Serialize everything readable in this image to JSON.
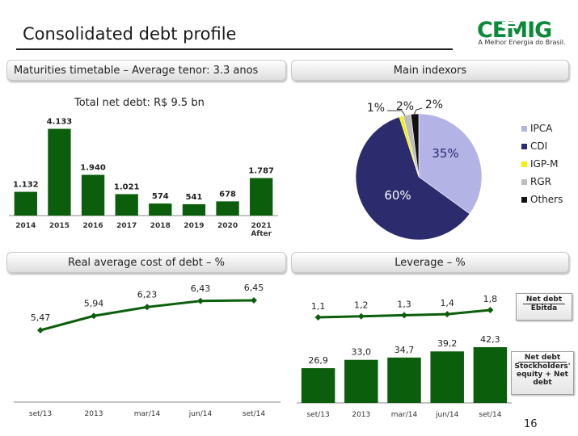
{
  "header": {
    "title": "Consolidated debt profile",
    "logo_text": "CEMIG",
    "logo_tagline": "A Melhor Energia do Brasil."
  },
  "panels": {
    "maturities": {
      "label": "Maturities timetable – Average tenor: 3.3 anos",
      "subtitle": "Total net debt: R$ 9.5 bn"
    },
    "indexors": {
      "label": "Main indexors"
    },
    "cost": {
      "label": "Real average cost of debt – %"
    },
    "leverage": {
      "label": "Leverage – %"
    }
  },
  "ratio_boxes": {
    "ebitda": {
      "numerator": "Net debt",
      "denominator": "Ebitda"
    },
    "equity": {
      "numerator": "Net debt",
      "denominator": "Stockholders' equity + Net debt"
    }
  },
  "page_number": "16",
  "colors": {
    "green": "#0b5e0b",
    "navy": "#2b2b6e",
    "lavender": "#b3b3e6",
    "yellow": "#f2f200",
    "gray": "#bdbdbd",
    "black": "#111111"
  },
  "chart_data": [
    {
      "type": "bar",
      "title": "Total net debt: R$ 9.5 bn",
      "categories": [
        "2014",
        "2015",
        "2016",
        "2017",
        "2018",
        "2019",
        "2020",
        "2021|After"
      ],
      "values": [
        1132,
        4133,
        1940,
        1021,
        574,
        541,
        678,
        1787
      ],
      "value_labels": [
        "1.132",
        "4.133",
        "1.940",
        "1.021",
        "574",
        "541",
        "678",
        "1.787"
      ],
      "ylim": [
        0,
        4500
      ]
    },
    {
      "type": "pie",
      "title": "Main indexors",
      "labels": [
        "IPCA",
        "CDI",
        "IGP-M",
        "RGR",
        "Others"
      ],
      "values": [
        35,
        60,
        1,
        2,
        2
      ],
      "value_labels": [
        "35%",
        "60%",
        "1%",
        "2%",
        "2%"
      ],
      "legend": "right"
    },
    {
      "type": "line",
      "title": "Real average cost of debt – %",
      "categories": [
        "set/13",
        "2013",
        "mar/14",
        "jun/14",
        "set/14"
      ],
      "values": [
        5.47,
        5.94,
        6.23,
        6.43,
        6.45
      ],
      "value_labels": [
        "5,47",
        "5,94",
        "6,23",
        "6,43",
        "6,45"
      ],
      "ylim": [
        5.0,
        6.8
      ]
    },
    {
      "type": "bar+line",
      "title": "Leverage – %",
      "categories": [
        "set/13",
        "2013",
        "mar/14",
        "jun/14",
        "set/14"
      ],
      "series": [
        {
          "name": "Net debt / Ebitda",
          "values": [
            1.1,
            1.2,
            1.3,
            1.4,
            1.8
          ],
          "value_labels": [
            "1,1",
            "1,2",
            "1,3",
            "1,4",
            "1,8"
          ]
        },
        {
          "name": "Net debt / Stockholders' equity + Net debt",
          "values": [
            26.9,
            33.0,
            34.7,
            39.2,
            42.3
          ],
          "value_labels": [
            "26,9",
            "33,0",
            "34,7",
            "39,2",
            "42,3"
          ]
        }
      ]
    }
  ]
}
